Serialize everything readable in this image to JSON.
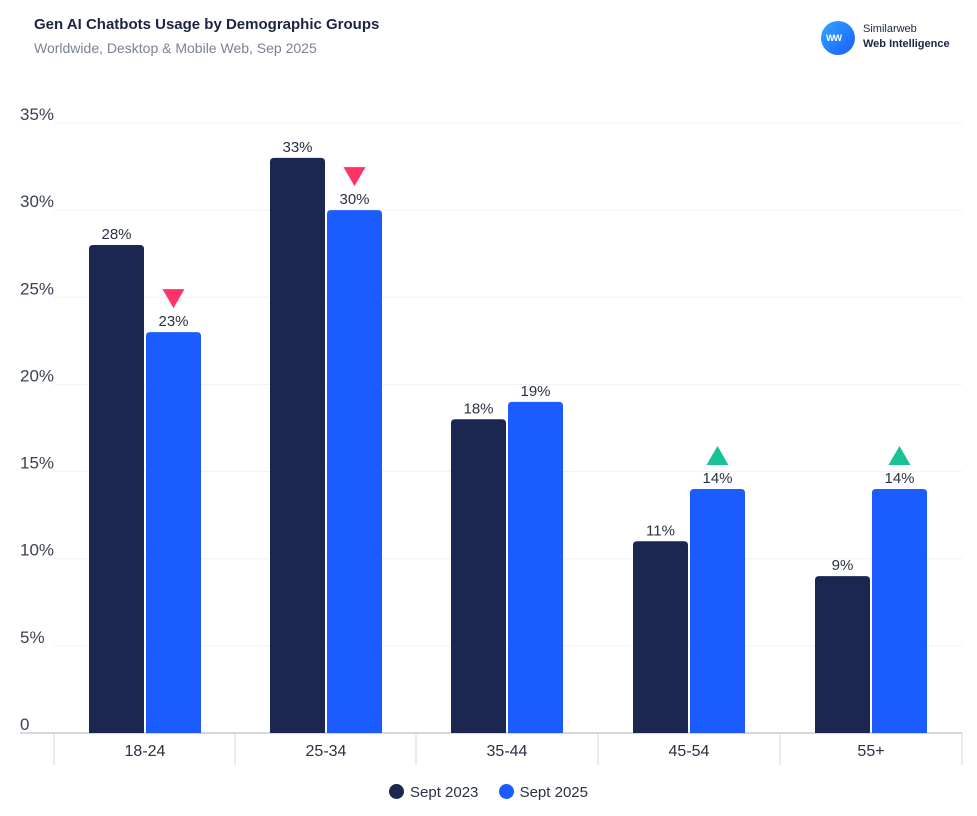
{
  "header": {
    "title": "Gen AI Chatbots Usage by Demographic Groups",
    "subtitle": "Worldwide, Desktop & Mobile Web, Sep 2025"
  },
  "brand": {
    "logo_text": "WW",
    "name": "Similarweb",
    "product": "Web Intelligence"
  },
  "chart_data": {
    "type": "bar",
    "title": "Gen AI Chatbots Usage by Demographic Groups",
    "xlabel": "",
    "ylabel": "",
    "ylim": [
      0,
      35
    ],
    "yticks": [
      "0",
      "5%",
      "10%",
      "15%",
      "20%",
      "25%",
      "30%",
      "35%"
    ],
    "ytick_values": [
      0,
      5,
      10,
      15,
      20,
      25,
      30,
      35
    ],
    "grid": true,
    "legend_position": "bottom",
    "categories": [
      "18-24",
      "25-34",
      "35-44",
      "45-54",
      "55+"
    ],
    "series": [
      {
        "name": "Sept 2023",
        "color": "#1b2651",
        "values": [
          28,
          33,
          18,
          11,
          9
        ],
        "labels": [
          "28%",
          "33%",
          "18%",
          "11%",
          "9%"
        ]
      },
      {
        "name": "Sept 2025",
        "color": "#1b5cff",
        "values": [
          23,
          30,
          19,
          14,
          14
        ],
        "labels": [
          "23%",
          "30%",
          "19%",
          "14%",
          "14%"
        ]
      }
    ],
    "change_markers": [
      "down",
      "down",
      "none",
      "up",
      "up"
    ],
    "marker_colors": {
      "up": "#18c296",
      "down": "#ff3366"
    }
  }
}
